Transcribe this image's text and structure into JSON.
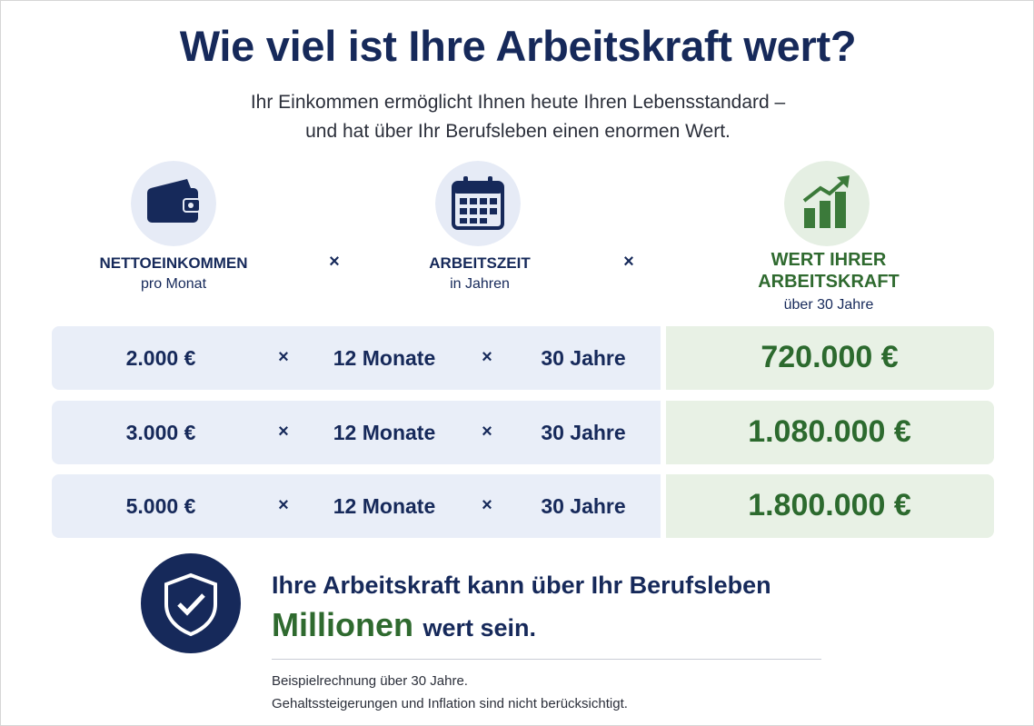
{
  "header": {
    "title": "Wie viel ist Ihre Arbeitskraft wert?",
    "subtitle": [
      "Ihr Einkommen ermöglicht Ihnen heute Ihren Lebensstandard –",
      "und hat über Ihr Berufsleben einen enormen Wert."
    ]
  },
  "columns": [
    {
      "title": [
        "NETTOEINKOMMEN"
      ],
      "subtitle": "pro Monat"
    },
    {
      "title": [
        "ARBEITSZEIT"
      ],
      "subtitle": "in Jahren"
    },
    {
      "title": [
        "WERT IHRER",
        "ARBEITSKRAFT"
      ],
      "subtitle": "über 30 Jahre"
    }
  ],
  "operator": "×",
  "table": {
    "rows": [
      [
        "2.000 €",
        "12 Monate",
        "30 Jahre",
        "720.000 €"
      ],
      [
        "3.000 €",
        "12 Monate",
        "30 Jahre",
        "1.080.000 €"
      ],
      [
        "5.000 €",
        "12 Monate",
        "30 Jahre",
        "1.800.000 €"
      ]
    ]
  },
  "callout": {
    "line1": "Ihre Arbeitskraft kann über Ihr Berufsleben",
    "highlight": "Millionen",
    "rest": "wert sein."
  },
  "footnote": [
    "Beispielrechnung über 30 Jahre.",
    "Gehaltssteigerungen und Inflation sind nicht berücksichtigt."
  ]
}
